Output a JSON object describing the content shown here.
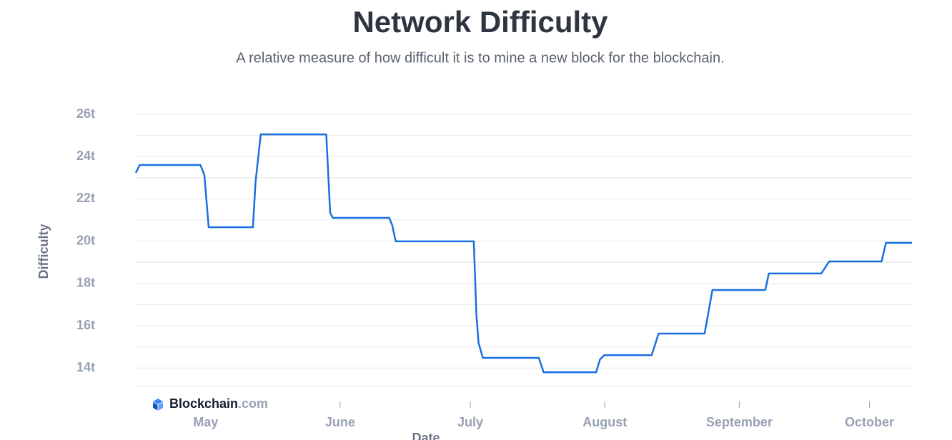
{
  "chart_data": {
    "type": "line",
    "title": "Network Difficulty",
    "subtitle": "A relative measure of how difficult it is to mine a new block for the blockchain.",
    "y_label": "Difficulty",
    "x_label": "Date",
    "watermark": {
      "name": "Blockchain",
      "suffix": ".com"
    },
    "color": "#1a6fe0",
    "grid": true,
    "xlim": [
      -16.1,
      162.8
    ],
    "xticks": [
      {
        "value": 0,
        "label": "May"
      },
      {
        "value": 31,
        "label": "June"
      },
      {
        "value": 61,
        "label": "July"
      },
      {
        "value": 92,
        "label": "August"
      },
      {
        "value": 123,
        "label": "September"
      },
      {
        "value": 153,
        "label": "October"
      }
    ],
    "ylim": [
      13.13,
      26
    ],
    "yticks": [
      {
        "value": 14,
        "label": "14t"
      },
      {
        "value": 16,
        "label": "16t"
      },
      {
        "value": 18,
        "label": "18t"
      },
      {
        "value": 20,
        "label": "20t"
      },
      {
        "value": 22,
        "label": "22t"
      },
      {
        "value": 24,
        "label": "24t"
      },
      {
        "value": 26,
        "label": "26t"
      }
    ],
    "minor_yticks": [
      15,
      17,
      19,
      21,
      23,
      25
    ],
    "x": [
      -16.1,
      -15.2,
      -1.2,
      -0.3,
      0.7,
      10.9,
      11.5,
      12.7,
      27.8,
      28.7,
      29.3,
      42.3,
      43.0,
      43.8,
      61.8,
      62.4,
      62.9,
      63.9,
      76.8,
      77.9,
      90.0,
      90.9,
      91.9,
      102.8,
      104.4,
      115.0,
      115.8,
      116.8,
      129.0,
      129.8,
      141.9,
      143.7,
      155.8,
      156.8,
      162.8
    ],
    "values": [
      23.23,
      23.6,
      23.6,
      23.13,
      20.66,
      20.66,
      22.8,
      25.05,
      25.05,
      21.34,
      21.1,
      21.1,
      20.76,
      19.99,
      19.99,
      16.54,
      15.19,
      14.48,
      14.48,
      13.8,
      13.8,
      14.41,
      14.61,
      14.61,
      15.63,
      15.63,
      16.54,
      17.69,
      17.69,
      18.47,
      18.47,
      19.04,
      19.04,
      19.92,
      19.92
    ]
  }
}
